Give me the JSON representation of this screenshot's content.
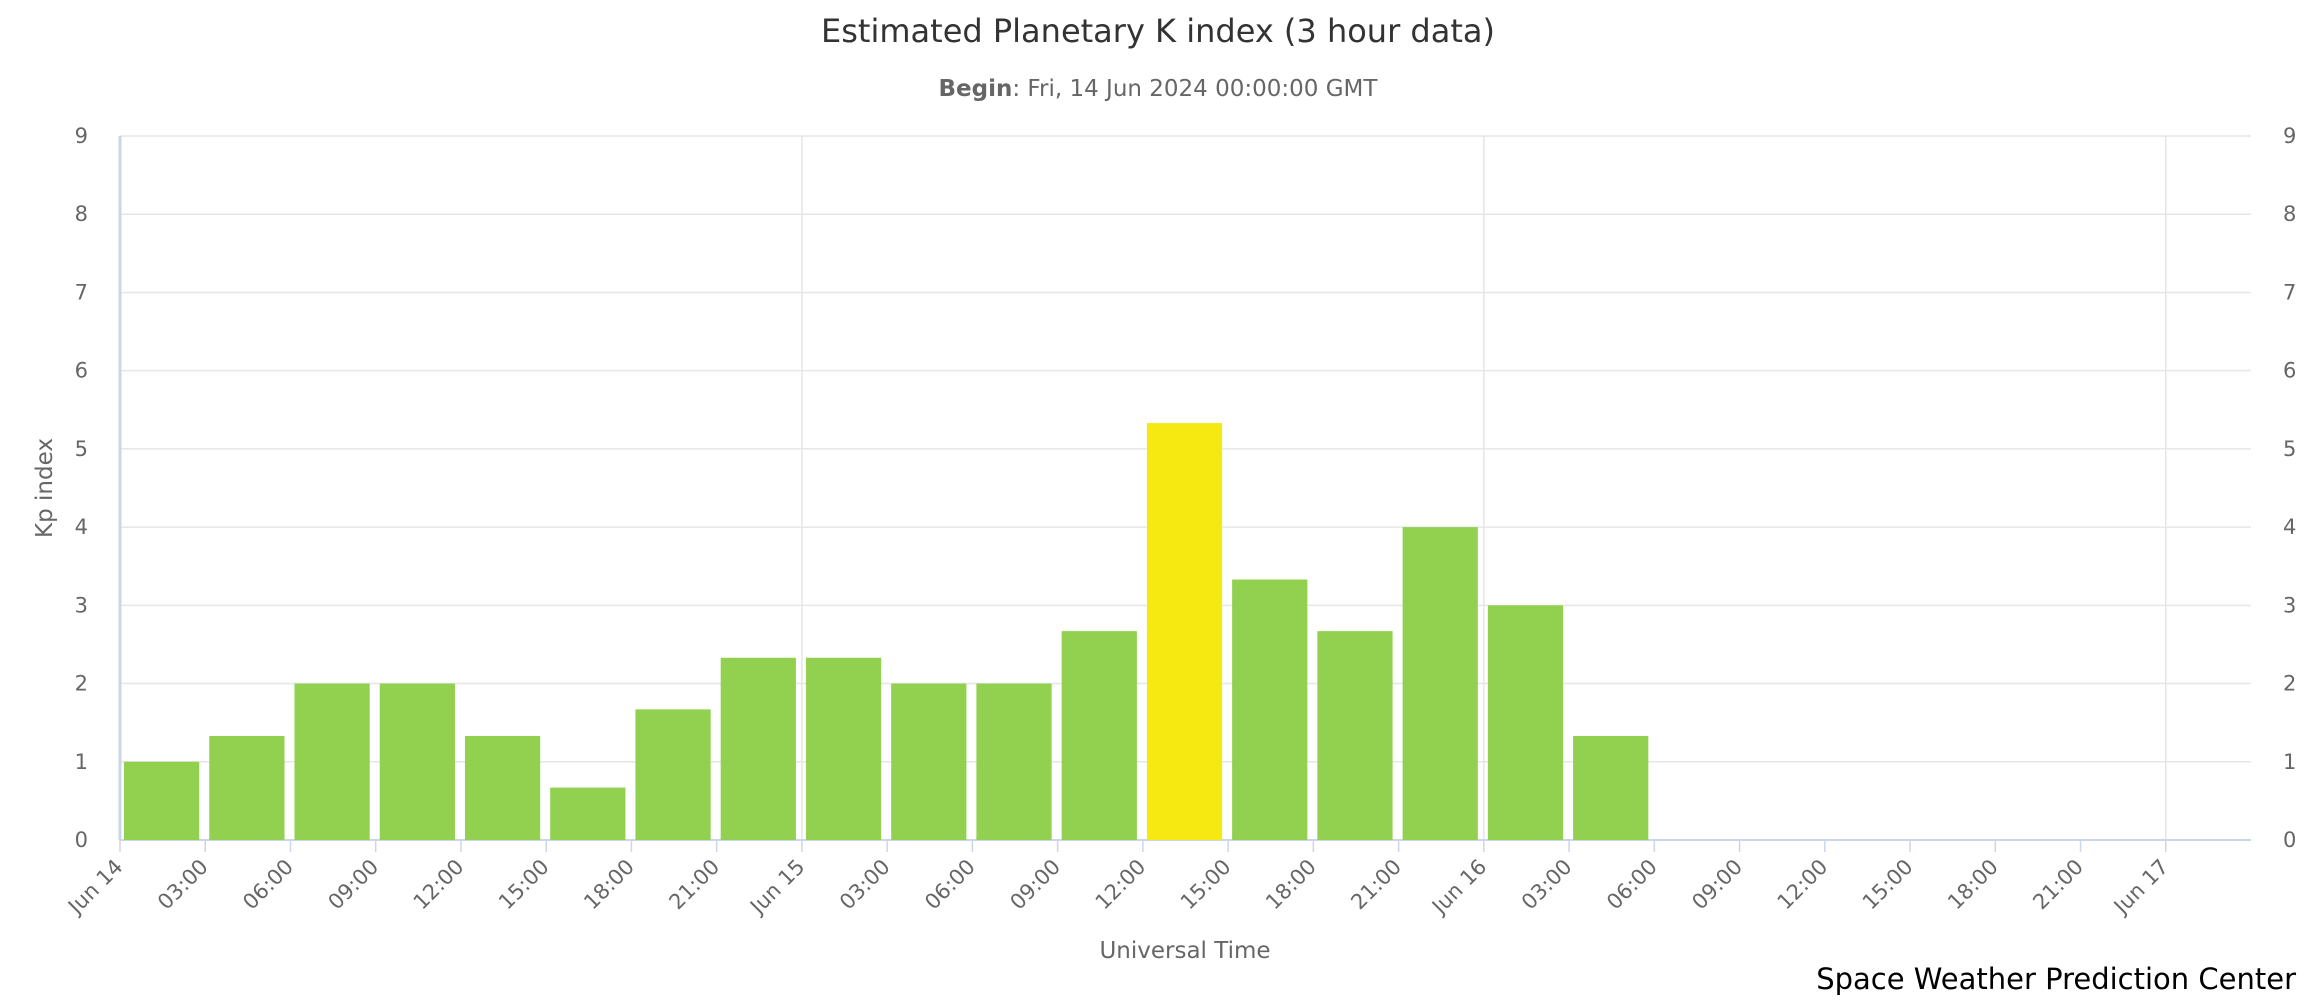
{
  "chart_data": {
    "type": "bar",
    "title": "Estimated Planetary K index (3 hour data)",
    "subtitle": {
      "label": "Begin",
      "text": ": Fri, 14 Jun 2024 00:00:00 GMT"
    },
    "xlabel": "Universal Time",
    "ylabel": "Kp index",
    "credit": "Space Weather Prediction Center",
    "categories": [
      "Jun 14",
      "03:00",
      "06:00",
      "09:00",
      "12:00",
      "15:00",
      "18:00",
      "21:00",
      "Jun 15",
      "03:00",
      "06:00",
      "09:00",
      "12:00",
      "15:00",
      "18:00",
      "21:00",
      "Jun 16",
      "03:00",
      "06:00",
      "09:00",
      "12:00",
      "15:00",
      "18:00",
      "21:00",
      "Jun 17"
    ],
    "values": [
      1,
      1.33,
      2,
      2,
      1.33,
      0.67,
      1.67,
      2.33,
      2.33,
      2,
      2,
      2.67,
      5.33,
      3.33,
      2.67,
      4,
      3,
      1.33,
      null,
      null,
      null,
      null,
      null,
      null,
      null
    ],
    "colors": [
      "#92d050",
      "#92d050",
      "#92d050",
      "#92d050",
      "#92d050",
      "#92d050",
      "#92d050",
      "#92d050",
      "#92d050",
      "#92d050",
      "#92d050",
      "#92d050",
      "#f5e911",
      "#92d050",
      "#92d050",
      "#92d050",
      "#92d050",
      "#92d050",
      null,
      null,
      null,
      null,
      null,
      null,
      null
    ],
    "ylim": [
      0,
      9
    ],
    "yticks": [
      0,
      1,
      2,
      3,
      4,
      5,
      6,
      7,
      8,
      9
    ],
    "y2lim": [
      0,
      9
    ],
    "y2ticks": [
      0,
      1,
      2,
      3,
      4,
      5,
      6,
      7,
      8,
      9
    ],
    "grid": true
  }
}
